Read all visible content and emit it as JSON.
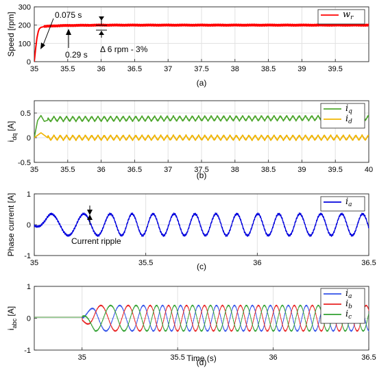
{
  "chart_data": [
    {
      "type": "line",
      "ylabel": "Speed [rpm]",
      "caption": "(a)",
      "xlim": [
        35,
        40
      ],
      "ylim": [
        0,
        300
      ],
      "xticks": [
        "35",
        "35.5",
        "36",
        "36.5",
        "37",
        "37.5",
        "38",
        "38.5",
        "39",
        "39.5"
      ],
      "yticks": [
        "0",
        "100",
        "200",
        "300"
      ],
      "grid": true,
      "legend_position": "top-right",
      "series": [
        {
          "name": "w",
          "subscript": "r",
          "color": "#ff0000",
          "x": [
            35,
            35.02,
            35.04,
            35.06,
            35.075,
            35.1,
            35.15,
            35.2,
            35.29,
            35.5,
            36,
            37,
            38,
            39,
            40
          ],
          "y": [
            0,
            70,
            130,
            165,
            180,
            188,
            192,
            194,
            196,
            198,
            200,
            200,
            200,
            200,
            200
          ]
        }
      ],
      "annotations": [
        "0.075 s",
        "0.29 s",
        "Δ 6 rpm - 3%"
      ]
    },
    {
      "type": "line",
      "ylabel": "i",
      "ylabel_sub": "dq",
      "ylabel_unit": " [A]",
      "caption": "(b)",
      "xlim": [
        35,
        40
      ],
      "ylim": [
        -0.5,
        0.75
      ],
      "xticks": [
        "35",
        "35.5",
        "36",
        "36.5",
        "37",
        "37.5",
        "38",
        "38.5",
        "39",
        "39.5",
        "40"
      ],
      "yticks": [
        "-0.5",
        "0",
        "0.5"
      ],
      "grid": true,
      "legend_position": "top-right",
      "series": [
        {
          "name": "i",
          "subscript": "q",
          "color": "#4ea72e",
          "mean": 0.4,
          "ripple": 0.05,
          "x": [
            35,
            35.05,
            35.1,
            35.15,
            35.25,
            40
          ],
          "y": [
            0,
            0.35,
            0.45,
            0.33,
            0.38,
            0.4
          ]
        },
        {
          "name": "i",
          "subscript": "d",
          "color": "#f0b400",
          "mean": 0.0,
          "ripple": 0.05,
          "x": [
            35,
            35.1,
            35.15,
            35.2,
            40
          ],
          "y": [
            0,
            0.1,
            0.05,
            0.0,
            0.0
          ]
        }
      ]
    },
    {
      "type": "line",
      "ylabel": "Phase current [A]",
      "caption": "(c)",
      "xlim": [
        35,
        36.5
      ],
      "ylim": [
        -1,
        1
      ],
      "xticks": [
        "35",
        "35.5",
        "36",
        "36.5"
      ],
      "yticks": [
        "-1",
        "0",
        "1"
      ],
      "grid": true,
      "legend_position": "top-right",
      "series": [
        {
          "name": "i",
          "subscript": "a",
          "color": "#0000dd",
          "amplitude": 0.35,
          "start_period": 0.18,
          "end_period": 0.094
        }
      ],
      "annotations": [
        "Current ripple"
      ]
    },
    {
      "type": "line",
      "ylabel": "i",
      "ylabel_sub": "abc",
      "ylabel_unit": " [A]",
      "xlabel": "Time (s)",
      "caption": "(d)",
      "xlim": [
        34.75,
        36.5
      ],
      "ylim": [
        -1,
        1
      ],
      "xticks": [
        "35",
        "35.5",
        "36",
        "36.5"
      ],
      "yticks": [
        "-1",
        "0",
        "1"
      ],
      "grid": true,
      "legend_position": "top-right",
      "series": [
        {
          "name": "i",
          "subscript": "a",
          "color": "#3050e8",
          "phase_deg": 0
        },
        {
          "name": "i",
          "subscript": "b",
          "color": "#e82020",
          "phase_deg": -120
        },
        {
          "name": "i",
          "subscript": "c",
          "color": "#30a030",
          "phase_deg": 120
        }
      ],
      "start_time": 35.0,
      "amplitude": 0.4
    }
  ]
}
